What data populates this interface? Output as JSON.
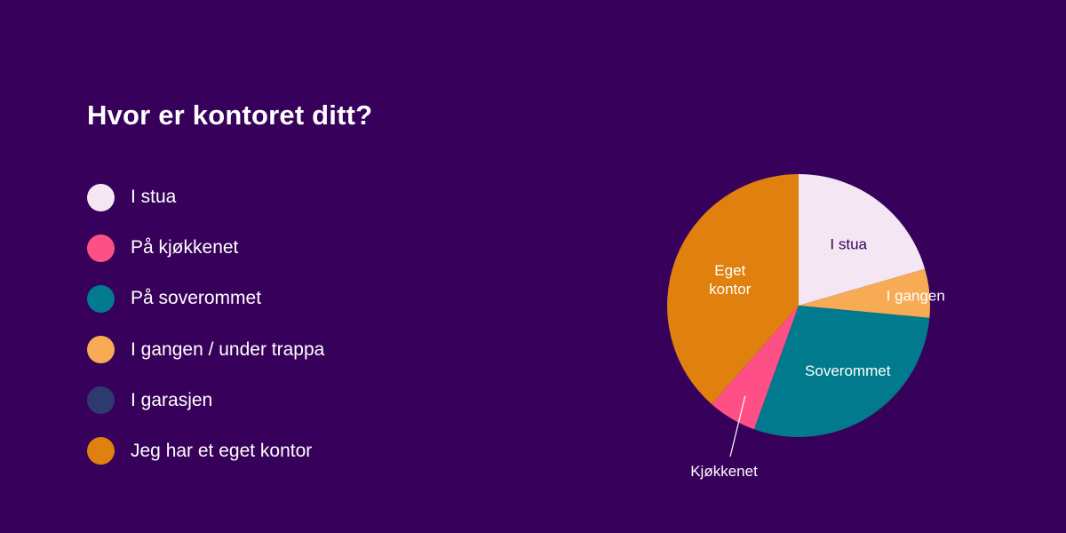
{
  "chart_data": {
    "type": "pie",
    "title": "Hvor er kontoret ditt?",
    "legend": [
      {
        "label": "I stua",
        "color": "#f5e6f3"
      },
      {
        "label": "På kjøkkenet",
        "color": "#ff4f87"
      },
      {
        "label": "På soverommet",
        "color": "#007a8c"
      },
      {
        "label": "I gangen / under trappa",
        "color": "#f7ab55"
      },
      {
        "label": "I garasjen",
        "color": "#2e3a6e"
      },
      {
        "label": "Jeg har et eget kontor",
        "color": "#e0800f"
      }
    ],
    "slices": [
      {
        "label": "I stua",
        "value": 20.5,
        "color": "#f5e6f3",
        "text_color": "#37005a"
      },
      {
        "label": "I gangen",
        "value": 6.0,
        "color": "#f7ab55",
        "text_color": "#ffffff"
      },
      {
        "label": "Soverommet",
        "value": 29.0,
        "color": "#007a8c",
        "text_color": "#ffffff"
      },
      {
        "label": "Kjøkkenet",
        "value": 6.0,
        "color": "#ff4f87",
        "text_color": "#ffffff"
      },
      {
        "label": "Eget kontor",
        "value": 38.5,
        "color": "#e0800f",
        "text_color": "#ffffff"
      }
    ]
  }
}
